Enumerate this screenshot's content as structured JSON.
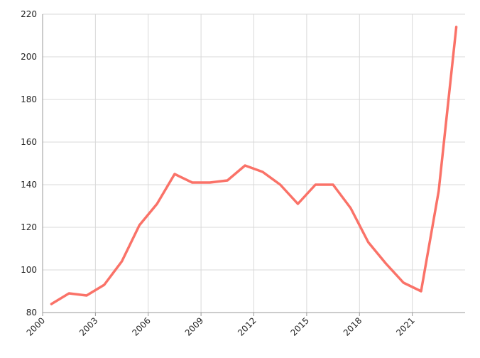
{
  "chart_data": {
    "type": "line",
    "color": "#fa7268",
    "grid": true,
    "x": [
      2000.5,
      2001.5,
      2002.5,
      2003.5,
      2004.5,
      2005.5,
      2006.5,
      2007.5,
      2008.5,
      2009.5,
      2010.5,
      2011.5,
      2012.5,
      2013.5,
      2014.5,
      2015.5,
      2016.5,
      2017.5,
      2018.5,
      2019.5,
      2020.5,
      2021.5,
      2022.5,
      2023.5
    ],
    "values": [
      84,
      89,
      88,
      93,
      104,
      121,
      131,
      145,
      141,
      141,
      142,
      149,
      146,
      140,
      131,
      140,
      140,
      129,
      113,
      103,
      94,
      90,
      137,
      214
    ],
    "xlim": [
      2000,
      2024
    ],
    "xticks": [
      2000,
      2003,
      2006,
      2009,
      2012,
      2015,
      2018,
      2021
    ],
    "ylim": [
      80,
      220
    ],
    "yticks": [
      80,
      100,
      120,
      140,
      160,
      180,
      200,
      220
    ]
  }
}
